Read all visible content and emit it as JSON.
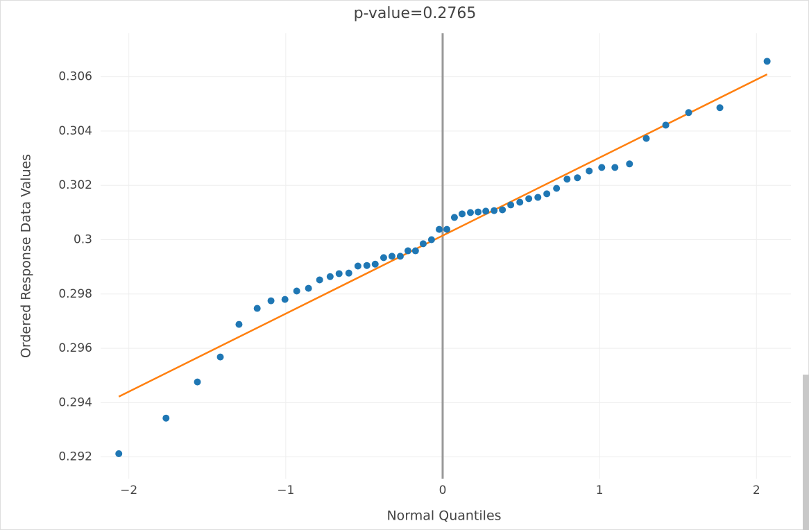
{
  "chart_data": {
    "type": "scatter",
    "title": "p-value=0.2765",
    "x_label": "Normal Quantiles",
    "y_label": "Ordered Response Data Values",
    "points": {
      "color": "#1f77b4",
      "x": [
        -2.064,
        -1.763,
        -1.563,
        -1.417,
        -1.298,
        -1.182,
        -1.094,
        -1.005,
        -0.93,
        -0.855,
        -0.784,
        -0.717,
        -0.66,
        -0.598,
        -0.54,
        -0.483,
        -0.43,
        -0.376,
        -0.323,
        -0.27,
        -0.221,
        -0.173,
        -0.124,
        -0.071,
        -0.022,
        0.027,
        0.075,
        0.124,
        0.177,
        0.226,
        0.275,
        0.328,
        0.381,
        0.434,
        0.492,
        0.549,
        0.607,
        0.664,
        0.726,
        0.793,
        0.859,
        0.934,
        1.014,
        1.098,
        1.191,
        1.298,
        1.422,
        1.568,
        1.767,
        2.068
      ],
      "y": [
        0.29212,
        0.29343,
        0.29476,
        0.29568,
        0.29688,
        0.29747,
        0.29775,
        0.2978,
        0.29811,
        0.29821,
        0.29852,
        0.29864,
        0.29875,
        0.29877,
        0.29903,
        0.29905,
        0.2991,
        0.29934,
        0.29939,
        0.29939,
        0.29959,
        0.29959,
        0.29985,
        0.3,
        0.30038,
        0.30038,
        0.30082,
        0.30095,
        0.301,
        0.30102,
        0.30105,
        0.30107,
        0.3011,
        0.30128,
        0.30138,
        0.30151,
        0.30156,
        0.30169,
        0.30189,
        0.30223,
        0.30228,
        0.30253,
        0.30266,
        0.30266,
        0.30279,
        0.30373,
        0.30422,
        0.30468,
        0.30486,
        0.30657
      ]
    },
    "fit_line": {
      "color": "#ff7f0e",
      "x": [
        -2.064,
        2.068
      ],
      "y": [
        0.29422,
        0.30609
      ]
    },
    "xlim": [
      -2.18,
      2.22
    ],
    "ylim": [
      0.2912,
      0.3076
    ],
    "xticks": [
      {
        "value": -2,
        "label": "−2"
      },
      {
        "value": -1,
        "label": "−1"
      },
      0,
      1,
      2
    ],
    "yticks": [
      0.292,
      0.294,
      0.296,
      0.298,
      0.3,
      0.302,
      0.304,
      0.306
    ],
    "grid": true,
    "zero_line": true
  }
}
